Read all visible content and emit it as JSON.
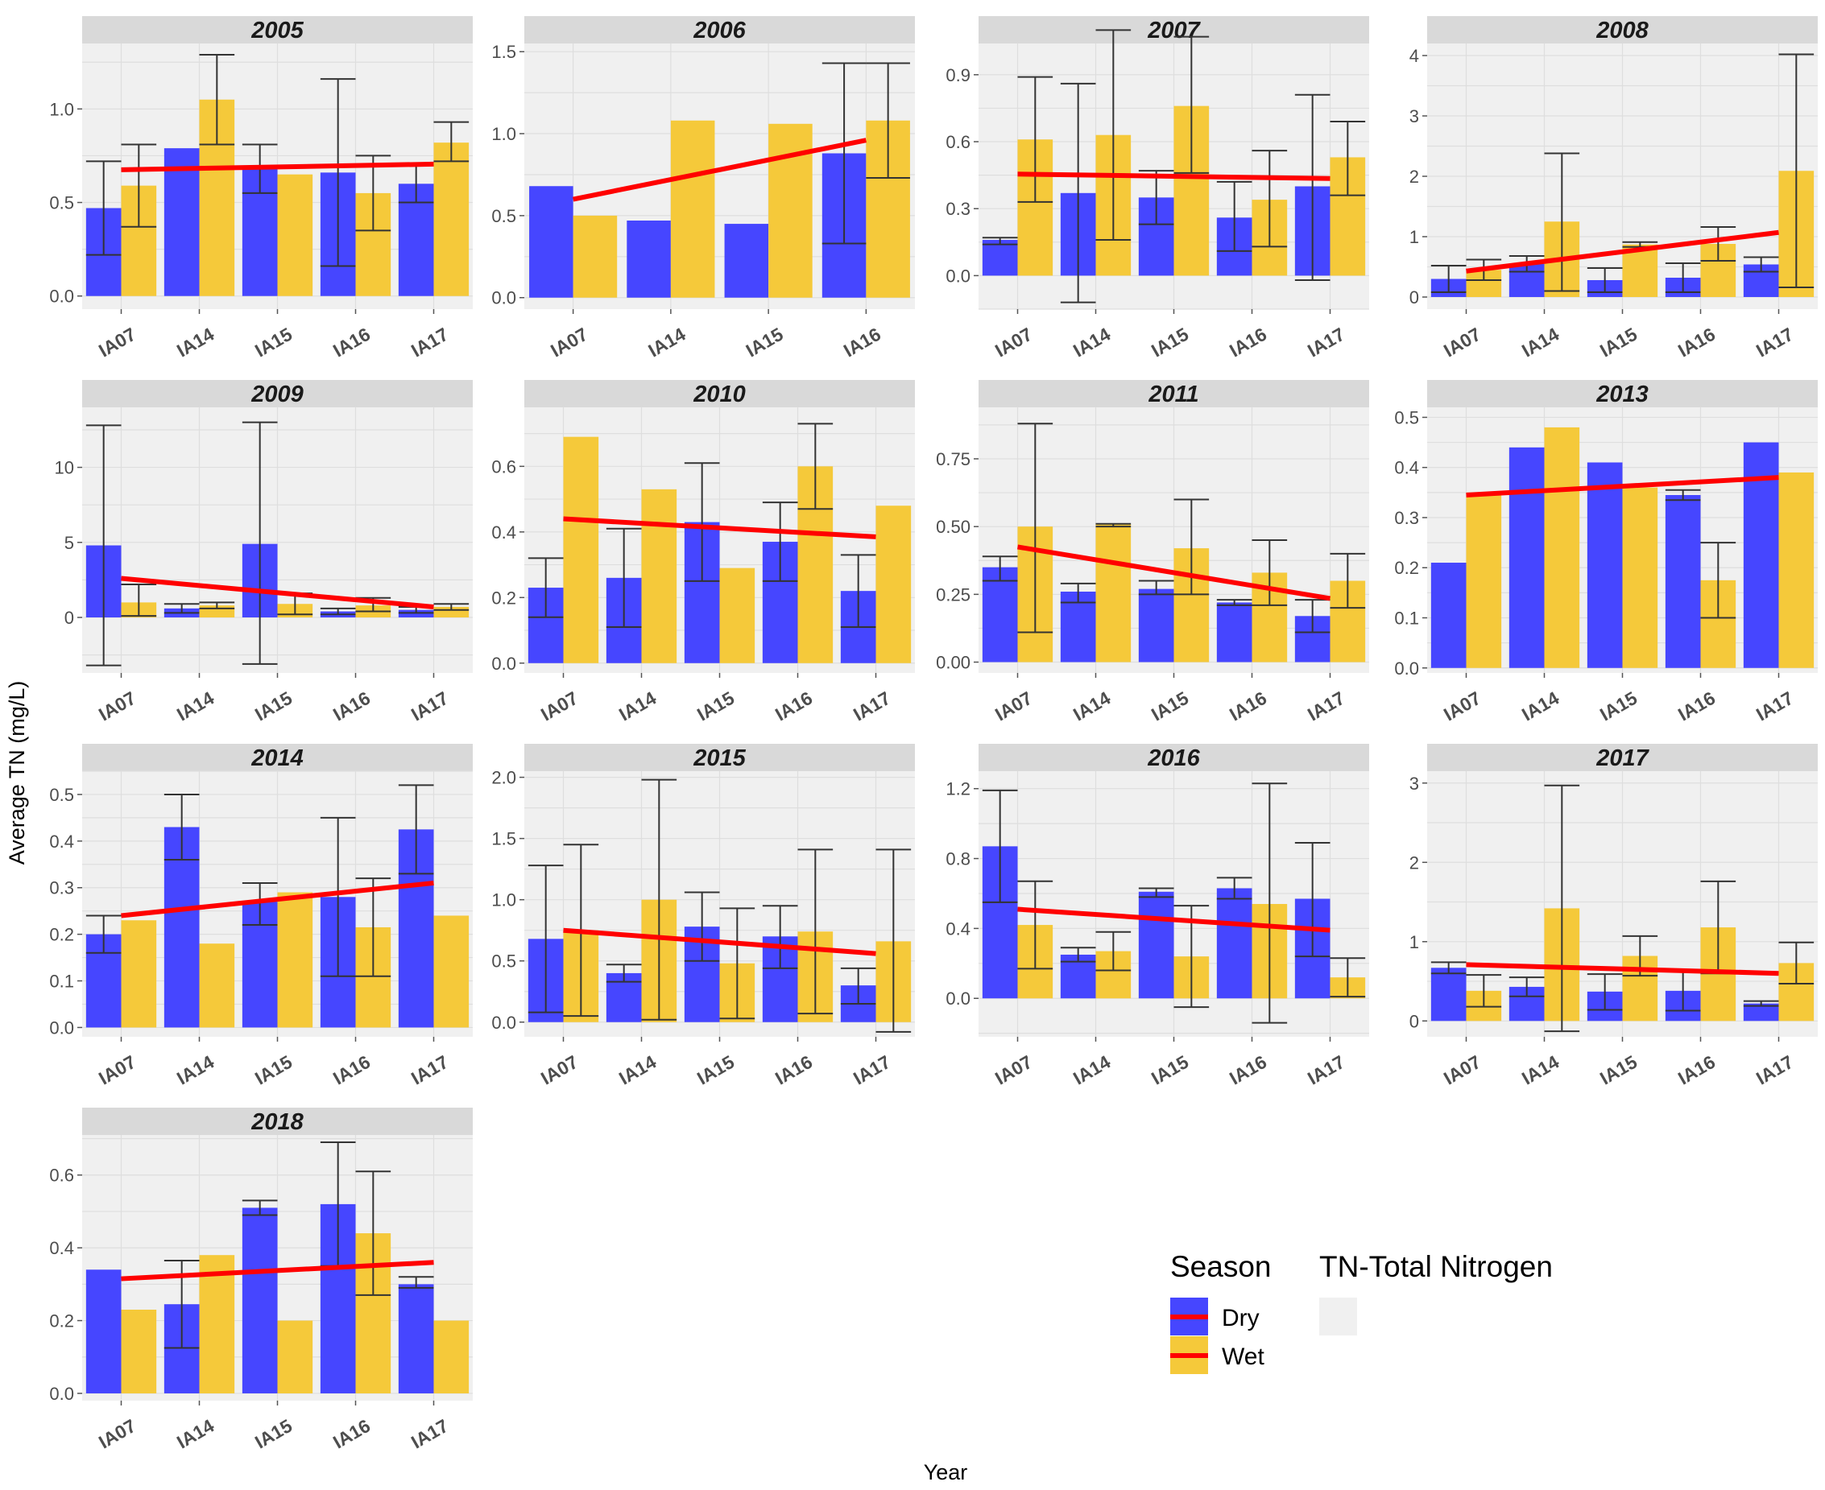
{
  "chart_data": {
    "type": "bar",
    "xlabel": "Year",
    "ylabel": "Average TN (mg/L)",
    "legend": {
      "title": "Season",
      "entries": [
        "Dry",
        "Wet"
      ],
      "note": "TN-Total Nitrogen",
      "position": "bottom-right"
    },
    "colors": {
      "Dry": "#4646ff",
      "Wet": "#f5c93a",
      "trend": "#ff0000",
      "errorbar": "#333333",
      "panel_bg": "#f0f0f0",
      "strip_bg": "#d9d9d9",
      "grid": "#dedede"
    },
    "panels": [
      {
        "title": "2005",
        "categories": [
          "IA07",
          "IA14",
          "IA15",
          "IA16",
          "IA17"
        ],
        "ylim": [
          -0.07,
          1.35
        ],
        "yticks": [
          0.0,
          0.5,
          1.0
        ],
        "series": [
          {
            "name": "Dry",
            "values": [
              0.47,
              0.79,
              0.68,
              0.66,
              0.6
            ],
            "err": [
              [
                0.22,
                0.72
              ],
              null,
              [
                0.55,
                0.81
              ],
              [
                0.16,
                1.16
              ],
              [
                0.5,
                0.7
              ]
            ]
          },
          {
            "name": "Wet",
            "values": [
              0.59,
              1.05,
              0.65,
              0.55,
              0.82
            ],
            "err": [
              [
                0.37,
                0.81
              ],
              [
                0.81,
                1.29
              ],
              null,
              [
                0.35,
                0.75
              ],
              [
                0.72,
                0.93
              ]
            ]
          }
        ],
        "trend": [
          0.675,
          0.705
        ]
      },
      {
        "title": "2006",
        "categories": [
          "IA07",
          "IA14",
          "IA15",
          "IA16"
        ],
        "ylim": [
          -0.07,
          1.55
        ],
        "yticks": [
          0.0,
          0.5,
          1.0,
          1.5
        ],
        "series": [
          {
            "name": "Dry",
            "values": [
              0.68,
              0.47,
              0.45,
              0.88
            ],
            "err": [
              null,
              null,
              null,
              [
                0.33,
                1.43
              ]
            ]
          },
          {
            "name": "Wet",
            "values": [
              0.5,
              1.08,
              1.06,
              1.08
            ],
            "err": [
              null,
              null,
              null,
              [
                0.73,
                1.43
              ]
            ]
          }
        ],
        "trend": [
          0.6,
          0.96
        ]
      },
      {
        "title": "2007",
        "categories": [
          "IA07",
          "IA14",
          "IA15",
          "IA16",
          "IA17"
        ],
        "ylim": [
          -0.15,
          1.04
        ],
        "yticks": [
          0.0,
          0.3,
          0.6,
          0.9
        ],
        "series": [
          {
            "name": "Dry",
            "values": [
              0.16,
              0.37,
              0.35,
              0.26,
              0.4
            ],
            "err": [
              [
                0.14,
                0.17
              ],
              [
                -0.12,
                0.86
              ],
              [
                0.23,
                0.47
              ],
              [
                0.11,
                0.42
              ],
              [
                -0.02,
                0.81
              ]
            ]
          },
          {
            "name": "Wet",
            "values": [
              0.61,
              0.63,
              0.76,
              0.34,
              0.53
            ],
            "err": [
              [
                0.33,
                0.89
              ],
              [
                0.16,
                1.1
              ],
              [
                0.46,
                1.07
              ],
              [
                0.13,
                0.56
              ],
              [
                0.36,
                0.69
              ]
            ]
          }
        ],
        "trend": [
          0.455,
          0.435
        ]
      },
      {
        "title": "2008",
        "categories": [
          "IA07",
          "IA14",
          "IA15",
          "IA16",
          "IA17"
        ],
        "ylim": [
          -0.2,
          4.2
        ],
        "yticks": [
          0,
          1,
          2,
          3,
          4
        ],
        "series": [
          {
            "name": "Dry",
            "values": [
              0.3,
              0.55,
              0.28,
              0.32,
              0.54
            ],
            "err": [
              [
                0.08,
                0.52
              ],
              [
                0.42,
                0.68
              ],
              [
                0.08,
                0.48
              ],
              [
                0.08,
                0.56
              ],
              [
                0.42,
                0.66
              ]
            ]
          },
          {
            "name": "Wet",
            "values": [
              0.45,
              1.25,
              0.87,
              0.88,
              2.09
            ],
            "err": [
              [
                0.28,
                0.62
              ],
              [
                0.1,
                2.38
              ],
              [
                0.83,
                0.91
              ],
              [
                0.6,
                1.16
              ],
              [
                0.16,
                4.02
              ]
            ]
          }
        ],
        "trend": [
          0.43,
          1.07
        ]
      },
      {
        "title": "2009",
        "categories": [
          "IA07",
          "IA14",
          "IA15",
          "IA16",
          "IA17"
        ],
        "ylim": [
          -3.7,
          14.0
        ],
        "yticks": [
          0,
          5,
          10
        ],
        "series": [
          {
            "name": "Dry",
            "values": [
              4.8,
              0.6,
              4.9,
              0.4,
              0.5
            ],
            "err": [
              [
                -3.2,
                12.8
              ],
              [
                0.3,
                0.9
              ],
              [
                -3.1,
                13.0
              ],
              [
                0.2,
                0.6
              ],
              [
                0.3,
                0.7
              ]
            ]
          },
          {
            "name": "Wet",
            "values": [
              1.0,
              0.8,
              0.9,
              0.8,
              0.7
            ],
            "err": [
              [
                0.1,
                2.2
              ],
              [
                0.6,
                1.0
              ],
              [
                0.2,
                1.6
              ],
              [
                0.4,
                1.3
              ],
              [
                0.5,
                0.9
              ]
            ]
          }
        ],
        "trend": [
          2.6,
          0.7
        ]
      },
      {
        "title": "2010",
        "categories": [
          "IA07",
          "IA14",
          "IA15",
          "IA16",
          "IA17"
        ],
        "ylim": [
          -0.03,
          0.78
        ],
        "yticks": [
          0.0,
          0.2,
          0.4,
          0.6
        ],
        "series": [
          {
            "name": "Dry",
            "values": [
              0.23,
              0.26,
              0.43,
              0.37,
              0.22
            ],
            "err": [
              [
                0.14,
                0.32
              ],
              [
                0.11,
                0.41
              ],
              [
                0.25,
                0.61
              ],
              [
                0.25,
                0.49
              ],
              [
                0.11,
                0.33
              ]
            ]
          },
          {
            "name": "Wet",
            "values": [
              0.69,
              0.53,
              0.29,
              0.6,
              0.48
            ],
            "err": [
              null,
              null,
              null,
              [
                0.47,
                0.73
              ],
              null
            ]
          }
        ],
        "trend": [
          0.44,
          0.385
        ]
      },
      {
        "title": "2011",
        "categories": [
          "IA07",
          "IA14",
          "IA15",
          "IA16",
          "IA17"
        ],
        "ylim": [
          -0.04,
          0.94
        ],
        "yticks": [
          0.0,
          0.25,
          0.5,
          0.75
        ],
        "series": [
          {
            "name": "Dry",
            "values": [
              0.35,
              0.26,
              0.27,
              0.22,
              0.17
            ],
            "err": [
              [
                0.3,
                0.39
              ],
              [
                0.22,
                0.29
              ],
              [
                0.25,
                0.3
              ],
              [
                0.21,
                0.23
              ],
              [
                0.11,
                0.23
              ]
            ]
          },
          {
            "name": "Wet",
            "values": [
              0.5,
              0.51,
              0.42,
              0.33,
              0.3
            ],
            "err": [
              [
                0.11,
                0.88
              ],
              [
                0.5,
                0.51
              ],
              [
                0.25,
                0.6
              ],
              [
                0.21,
                0.45
              ],
              [
                0.2,
                0.4
              ]
            ]
          }
        ],
        "trend": [
          0.425,
          0.235
        ]
      },
      {
        "title": "2013",
        "categories": [
          "IA07",
          "IA14",
          "IA15",
          "IA16",
          "IA17"
        ],
        "ylim": [
          -0.01,
          0.52
        ],
        "yticks": [
          0.0,
          0.1,
          0.2,
          0.3,
          0.4,
          0.5
        ],
        "series": [
          {
            "name": "Dry",
            "values": [
              0.21,
              0.44,
              0.41,
              0.345,
              0.45
            ],
            "err": [
              null,
              null,
              null,
              [
                0.335,
                0.355
              ],
              null
            ]
          },
          {
            "name": "Wet",
            "values": [
              0.35,
              0.48,
              0.36,
              0.175,
              0.39
            ],
            "err": [
              null,
              null,
              null,
              [
                0.1,
                0.25
              ],
              null
            ]
          }
        ],
        "trend": [
          0.345,
          0.38
        ]
      },
      {
        "title": "2014",
        "categories": [
          "IA07",
          "IA14",
          "IA15",
          "IA16",
          "IA17"
        ],
        "ylim": [
          -0.02,
          0.55
        ],
        "yticks": [
          0.0,
          0.1,
          0.2,
          0.3,
          0.4,
          0.5
        ],
        "series": [
          {
            "name": "Dry",
            "values": [
              0.2,
              0.43,
              0.27,
              0.28,
              0.425
            ],
            "err": [
              [
                0.16,
                0.24
              ],
              [
                0.36,
                0.5
              ],
              [
                0.22,
                0.31
              ],
              [
                0.11,
                0.45
              ],
              [
                0.33,
                0.52
              ]
            ]
          },
          {
            "name": "Wet",
            "values": [
              0.23,
              0.18,
              0.29,
              0.215,
              0.24
            ],
            "err": [
              null,
              null,
              null,
              [
                0.11,
                0.32
              ],
              null
            ]
          }
        ],
        "trend": [
          0.24,
          0.31
        ]
      },
      {
        "title": "2015",
        "categories": [
          "IA07",
          "IA14",
          "IA15",
          "IA16",
          "IA17"
        ],
        "ylim": [
          -0.12,
          2.05
        ],
        "yticks": [
          0.0,
          0.5,
          1.0,
          1.5,
          2.0
        ],
        "series": [
          {
            "name": "Dry",
            "values": [
              0.68,
              0.4,
              0.78,
              0.7,
              0.3
            ],
            "err": [
              [
                0.08,
                1.28
              ],
              [
                0.33,
                0.47
              ],
              [
                0.5,
                1.06
              ],
              [
                0.44,
                0.95
              ],
              [
                0.15,
                0.44
              ]
            ]
          },
          {
            "name": "Wet",
            "values": [
              0.75,
              1.0,
              0.48,
              0.74,
              0.66
            ],
            "err": [
              [
                0.05,
                1.45
              ],
              [
                0.02,
                1.98
              ],
              [
                0.03,
                0.93
              ],
              [
                0.07,
                1.41
              ],
              [
                -0.08,
                1.41
              ]
            ]
          }
        ],
        "trend": [
          0.75,
          0.56
        ]
      },
      {
        "title": "2016",
        "categories": [
          "IA07",
          "IA14",
          "IA15",
          "IA16",
          "IA17"
        ],
        "ylim": [
          -0.22,
          1.3
        ],
        "yticks": [
          0.0,
          0.4,
          0.8,
          1.2
        ],
        "series": [
          {
            "name": "Dry",
            "values": [
              0.87,
              0.25,
              0.61,
              0.63,
              0.57
            ],
            "err": [
              [
                0.55,
                1.19
              ],
              [
                0.21,
                0.29
              ],
              [
                0.58,
                0.63
              ],
              [
                0.57,
                0.69
              ],
              [
                0.24,
                0.89
              ]
            ]
          },
          {
            "name": "Wet",
            "values": [
              0.42,
              0.27,
              0.24,
              0.54,
              0.12
            ],
            "err": [
              [
                0.17,
                0.67
              ],
              [
                0.16,
                0.38
              ],
              [
                -0.05,
                0.53
              ],
              [
                -0.14,
                1.23
              ],
              [
                0.01,
                0.23
              ]
            ]
          }
        ],
        "trend": [
          0.51,
          0.39
        ]
      },
      {
        "title": "2017",
        "categories": [
          "IA07",
          "IA14",
          "IA15",
          "IA16",
          "IA17"
        ],
        "ylim": [
          -0.2,
          3.15
        ],
        "yticks": [
          0,
          1,
          2,
          3
        ],
        "series": [
          {
            "name": "Dry",
            "values": [
              0.67,
              0.43,
              0.37,
              0.38,
              0.22
            ],
            "err": [
              [
                0.6,
                0.74
              ],
              [
                0.31,
                0.55
              ],
              [
                0.14,
                0.59
              ],
              [
                0.13,
                0.63
              ],
              [
                0.19,
                0.25
              ]
            ]
          },
          {
            "name": "Wet",
            "values": [
              0.38,
              1.42,
              0.82,
              1.18,
              0.73
            ],
            "err": [
              [
                0.18,
                0.58
              ],
              [
                -0.13,
                2.97
              ],
              [
                0.57,
                1.07
              ],
              [
                0.6,
                1.76
              ],
              [
                0.47,
                0.99
              ]
            ]
          }
        ],
        "trend": [
          0.71,
          0.6
        ]
      },
      {
        "title": "2018",
        "categories": [
          "IA07",
          "IA14",
          "IA15",
          "IA16",
          "IA17"
        ],
        "ylim": [
          -0.02,
          0.71
        ],
        "yticks": [
          0.0,
          0.2,
          0.4,
          0.6
        ],
        "series": [
          {
            "name": "Dry",
            "values": [
              0.34,
              0.245,
              0.51,
              0.52,
              0.3
            ],
            "err": [
              null,
              [
                0.125,
                0.365
              ],
              [
                0.49,
                0.53
              ],
              [
                0.35,
                0.69
              ],
              [
                0.29,
                0.32
              ]
            ]
          },
          {
            "name": "Wet",
            "values": [
              0.23,
              0.38,
              0.2,
              0.44,
              0.2
            ],
            "err": [
              null,
              null,
              null,
              [
                0.27,
                0.61
              ],
              null
            ]
          }
        ],
        "trend": [
          0.315,
          0.36
        ]
      }
    ]
  }
}
